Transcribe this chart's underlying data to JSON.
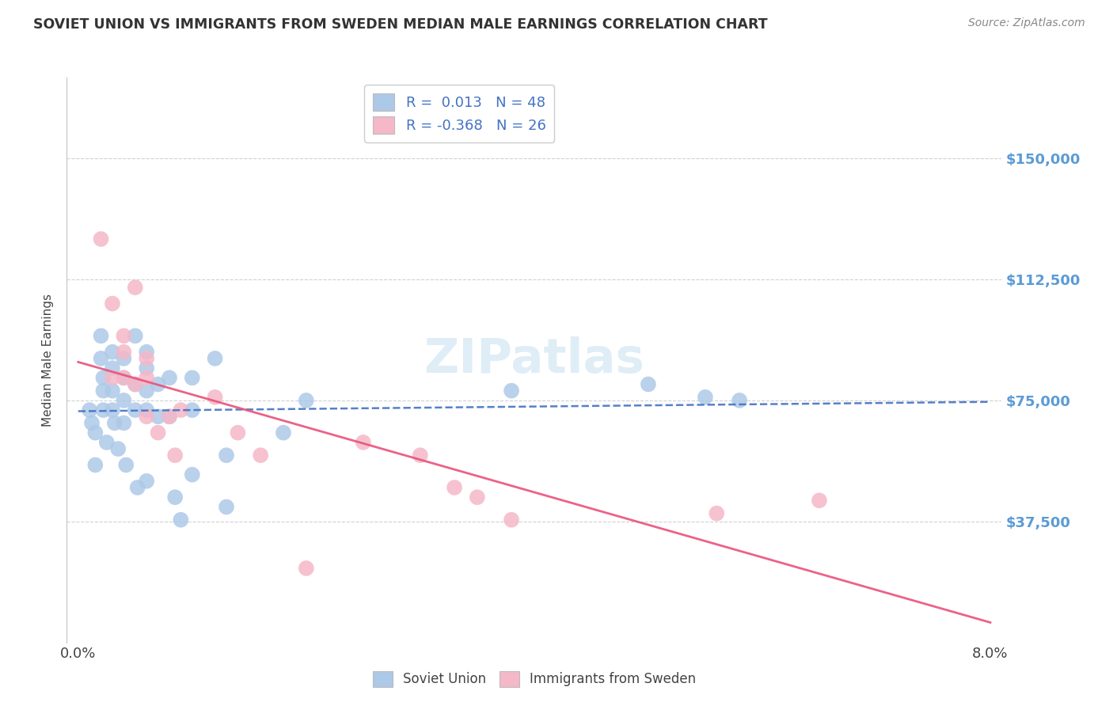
{
  "title": "SOVIET UNION VS IMMIGRANTS FROM SWEDEN MEDIAN MALE EARNINGS CORRELATION CHART",
  "source": "Source: ZipAtlas.com",
  "ylabel": "Median Male Earnings",
  "xlim": [
    -0.001,
    0.081
  ],
  "ylim": [
    0,
    175000
  ],
  "yticks": [
    37500,
    75000,
    112500,
    150000
  ],
  "ytick_labels": [
    "$37,500",
    "$75,000",
    "$112,500",
    "$150,000"
  ],
  "xtick_positions": [
    0.0,
    0.08
  ],
  "xtick_labels": [
    "0.0%",
    "8.0%"
  ],
  "soviet_R": "0.013",
  "soviet_N": "48",
  "sweden_R": "-0.368",
  "sweden_N": "26",
  "soviet_color": "#adc9e8",
  "sweden_color": "#f5b8c8",
  "soviet_line_color": "#4472c4",
  "sweden_line_color": "#e8527a",
  "background_color": "#ffffff",
  "grid_color": "#d0d0d0",
  "watermark": "ZIPatlas",
  "soviet_x": [
    0.001,
    0.0012,
    0.0015,
    0.0015,
    0.002,
    0.002,
    0.0022,
    0.0022,
    0.0022,
    0.0025,
    0.003,
    0.003,
    0.003,
    0.003,
    0.0032,
    0.0035,
    0.004,
    0.004,
    0.004,
    0.004,
    0.0042,
    0.005,
    0.005,
    0.005,
    0.0052,
    0.006,
    0.006,
    0.006,
    0.006,
    0.006,
    0.007,
    0.007,
    0.008,
    0.008,
    0.0085,
    0.009,
    0.01,
    0.01,
    0.01,
    0.012,
    0.013,
    0.013,
    0.018,
    0.02,
    0.038,
    0.05,
    0.055,
    0.058
  ],
  "soviet_y": [
    72000,
    68000,
    65000,
    55000,
    95000,
    88000,
    82000,
    78000,
    72000,
    62000,
    90000,
    85000,
    78000,
    72000,
    68000,
    60000,
    88000,
    82000,
    75000,
    68000,
    55000,
    95000,
    80000,
    72000,
    48000,
    90000,
    85000,
    78000,
    72000,
    50000,
    80000,
    70000,
    82000,
    70000,
    45000,
    38000,
    82000,
    72000,
    52000,
    88000,
    58000,
    42000,
    65000,
    75000,
    78000,
    80000,
    76000,
    75000
  ],
  "sweden_x": [
    0.002,
    0.003,
    0.003,
    0.004,
    0.004,
    0.004,
    0.005,
    0.005,
    0.006,
    0.006,
    0.006,
    0.007,
    0.008,
    0.0085,
    0.009,
    0.012,
    0.014,
    0.016,
    0.02,
    0.025,
    0.03,
    0.033,
    0.035,
    0.038,
    0.056,
    0.065
  ],
  "sweden_y": [
    125000,
    105000,
    82000,
    95000,
    90000,
    82000,
    110000,
    80000,
    88000,
    70000,
    82000,
    65000,
    70000,
    58000,
    72000,
    76000,
    65000,
    58000,
    23000,
    62000,
    58000,
    48000,
    45000,
    38000,
    40000,
    44000
  ]
}
